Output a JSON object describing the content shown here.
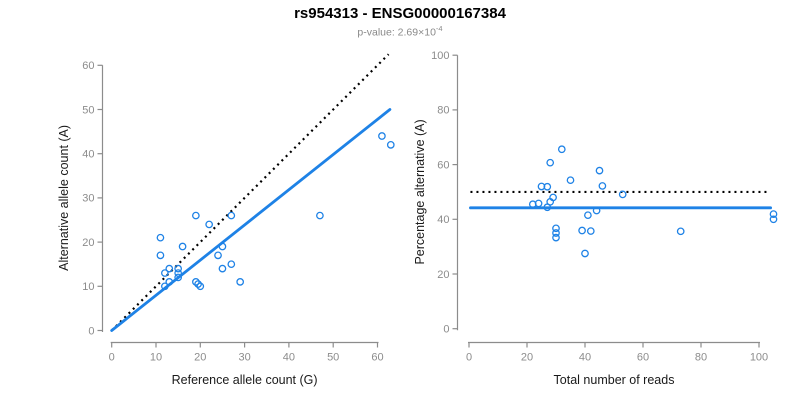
{
  "header": {
    "title": "rs954313 - ENSG00000167384",
    "subtitle_prefix": "p-value: 2.69×10",
    "subtitle_exponent": "-4"
  },
  "colors": {
    "point_blue": "#1E82E6",
    "line_blue": "#1E82E6",
    "dotted_black": "#000000",
    "axis_gray": "#8c8c8c",
    "tick_label_gray": "#8c8c8c",
    "axis_title_black": "#1a1a1a"
  },
  "chart_data": [
    {
      "id": "allele-count-scatter",
      "type": "scatter",
      "xlabel": "Reference allele count (G)",
      "ylabel": "Alternative allele count (A)",
      "xlim": [
        0,
        65
      ],
      "ylim": [
        0,
        63
      ],
      "xticks": [
        0,
        10,
        20,
        30,
        40,
        50,
        60
      ],
      "yticks": [
        0,
        10,
        20,
        30,
        40,
        50,
        60
      ],
      "grid": false,
      "legend": null,
      "points": [
        [
          11,
          21
        ],
        [
          11,
          17
        ],
        [
          12,
          13
        ],
        [
          12,
          10
        ],
        [
          13,
          14
        ],
        [
          13,
          11
        ],
        [
          15,
          14
        ],
        [
          15,
          13
        ],
        [
          15,
          12
        ],
        [
          16,
          19
        ],
        [
          19,
          26
        ],
        [
          19,
          11
        ],
        [
          19.5,
          10.5
        ],
        [
          20,
          10
        ],
        [
          22,
          24
        ],
        [
          24,
          17
        ],
        [
          25,
          19
        ],
        [
          25,
          14
        ],
        [
          27,
          26
        ],
        [
          27,
          15
        ],
        [
          29,
          11
        ],
        [
          47,
          26
        ],
        [
          61,
          44
        ],
        [
          63,
          42
        ]
      ],
      "lines": [
        {
          "name": "identity-line",
          "style": "dotted",
          "color_key": "dotted_black",
          "x1": 0,
          "y1": 0,
          "x2": 62.5,
          "y2": 62.5
        },
        {
          "name": "regression-line",
          "style": "solid",
          "color_key": "line_blue",
          "x1": 0,
          "y1": 0,
          "x2": 62.8,
          "y2": 50
        }
      ]
    },
    {
      "id": "percentage-scatter",
      "type": "scatter",
      "xlabel": "Total number of reads",
      "ylabel": "Percentage alternative (A)",
      "xlim": [
        0,
        106
      ],
      "ylim": [
        0,
        100
      ],
      "xticks": [
        0,
        20,
        40,
        60,
        80,
        100
      ],
      "yticks": [
        0,
        20,
        40,
        60,
        80,
        100
      ],
      "grid": false,
      "legend": null,
      "points": [
        [
          32,
          65.6
        ],
        [
          28,
          60.7
        ],
        [
          25,
          52
        ],
        [
          22,
          45.5
        ],
        [
          27,
          51.9
        ],
        [
          24,
          45.8
        ],
        [
          29,
          48
        ],
        [
          28,
          46.4
        ],
        [
          27,
          44.4
        ],
        [
          35,
          54.3
        ],
        [
          45,
          57.8
        ],
        [
          30,
          36.7
        ],
        [
          30,
          35
        ],
        [
          30,
          33.3
        ],
        [
          46,
          52.2
        ],
        [
          41,
          41.5
        ],
        [
          44,
          43.2
        ],
        [
          39,
          35.9
        ],
        [
          53,
          49.1
        ],
        [
          42,
          35.7
        ],
        [
          40,
          27.5
        ],
        [
          73,
          35.6
        ],
        [
          105,
          41.9
        ],
        [
          105,
          40
        ]
      ],
      "lines": [
        {
          "name": "expected-50pct-line",
          "style": "dotted",
          "color_key": "dotted_black",
          "x1": 0.5,
          "y1": 50,
          "x2": 103.5,
          "y2": 50
        },
        {
          "name": "mean-percentage-line",
          "style": "solid",
          "color_key": "line_blue",
          "x1": 0.5,
          "y1": 44.2,
          "x2": 104,
          "y2": 44.2
        }
      ]
    }
  ]
}
